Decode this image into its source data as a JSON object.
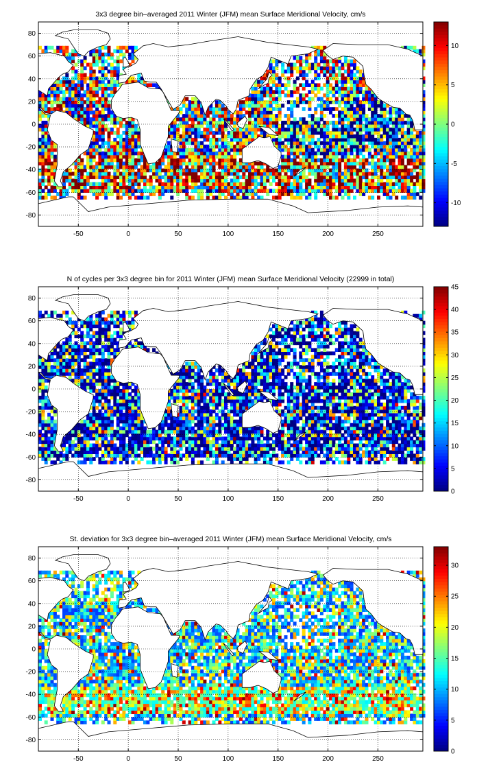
{
  "figure": {
    "panels": [
      {
        "title": "3x3 degree bin–averaged 2011 Winter (JFM) mean Surface Meridional Velocity, cm/s",
        "colorbar_ticks": [
          -10,
          -5,
          0,
          5,
          10
        ],
        "colorbar_range": [
          -13,
          13
        ]
      },
      {
        "title": "N of cycles per 3x3 degree bin for 2011 Winter (JFM) mean Surface Meridional Velocity (22999 in total)",
        "colorbar_ticks": [
          0,
          5,
          10,
          15,
          20,
          25,
          30,
          35,
          40,
          45
        ],
        "colorbar_range": [
          0,
          45
        ]
      },
      {
        "title": "St. deviation for 3x3 degree bin–averaged 2011 Winter (JFM) mean Surface Meridional Velocity, cm/s",
        "colorbar_ticks": [
          0,
          5,
          10,
          15,
          20,
          25,
          30
        ],
        "colorbar_range": [
          0,
          33
        ]
      }
    ]
  },
  "chart_data": [
    {
      "type": "heatmap",
      "title": "3x3 degree bin–averaged 2011 Winter (JFM) mean Surface Meridional Velocity, cm/s",
      "xlim": [
        -90,
        295
      ],
      "ylim": [
        -90,
        90
      ],
      "xticks": [
        -50,
        0,
        50,
        100,
        150,
        200,
        250
      ],
      "yticks": [
        -80,
        -60,
        -40,
        -20,
        0,
        20,
        40,
        60,
        80
      ],
      "bin_size_deg": 3,
      "grid": true,
      "colormap": "jet",
      "colorbar": {
        "range": [
          -13,
          13
        ],
        "ticks": [
          -10,
          -5,
          0,
          5,
          10
        ],
        "placement": "right"
      }
    },
    {
      "type": "heatmap",
      "title": "N of cycles per 3x3 degree bin for 2011 Winter (JFM) mean Surface Meridional Velocity (22999 in total)",
      "xlim": [
        -90,
        295
      ],
      "ylim": [
        -90,
        90
      ],
      "xticks": [
        -50,
        0,
        50,
        100,
        150,
        200,
        250
      ],
      "yticks": [
        -80,
        -60,
        -40,
        -20,
        0,
        20,
        40,
        60,
        80
      ],
      "bin_size_deg": 3,
      "total_cycles": 22999,
      "grid": true,
      "colormap": "jet",
      "colorbar": {
        "range": [
          0,
          45
        ],
        "ticks": [
          0,
          5,
          10,
          15,
          20,
          25,
          30,
          35,
          40,
          45
        ],
        "placement": "right"
      }
    },
    {
      "type": "heatmap",
      "title": "St. deviation for 3x3 degree bin–averaged 2011 Winter (JFM) mean Surface Meridional Velocity, cm/s",
      "xlim": [
        -90,
        295
      ],
      "ylim": [
        -90,
        90
      ],
      "xticks": [
        -50,
        0,
        50,
        100,
        150,
        200,
        250
      ],
      "yticks": [
        -80,
        -60,
        -40,
        -20,
        0,
        20,
        40,
        60,
        80
      ],
      "bin_size_deg": 3,
      "grid": true,
      "colormap": "jet",
      "colorbar": {
        "range": [
          0,
          33
        ],
        "ticks": [
          0,
          5,
          10,
          15,
          20,
          25,
          30
        ],
        "placement": "right"
      }
    }
  ]
}
